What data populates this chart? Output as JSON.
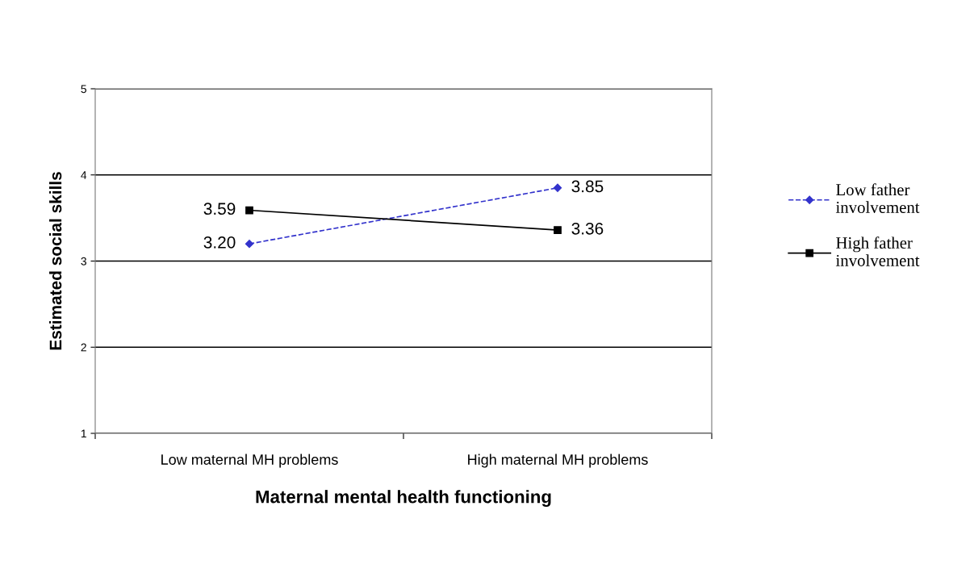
{
  "chart_data": {
    "type": "line",
    "xlabel": "Maternal mental health functioning",
    "ylabel": "Estimated social skills",
    "categories": [
      "Low maternal MH problems",
      "High maternal MH problems"
    ],
    "series": [
      {
        "name": "Low father involvement",
        "color": "#3333cc",
        "values": [
          3.2,
          3.85
        ],
        "value_labels": [
          "3.20",
          "3.85"
        ],
        "marker": "diamond",
        "line_style": "dashed"
      },
      {
        "name": "High father involvement",
        "color": "#000000",
        "values": [
          3.59,
          3.36
        ],
        "value_labels": [
          "3.59",
          "3.36"
        ],
        "marker": "square",
        "line_style": "solid"
      }
    ],
    "ylim": [
      1,
      5
    ],
    "yticks": [
      1,
      2,
      3,
      4,
      5
    ],
    "grid": "y",
    "legend": "right"
  }
}
